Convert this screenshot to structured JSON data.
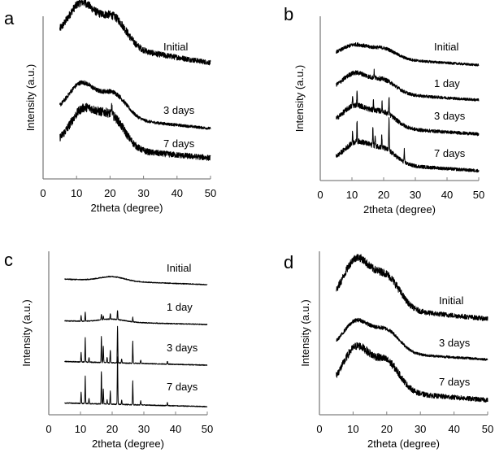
{
  "chart_data": [
    {
      "panel": "a",
      "type": "line",
      "xlabel": "2theta (degree)",
      "ylabel": "Intensity (a.u.)",
      "xlim": [
        0,
        50
      ],
      "xticks": [
        0,
        10,
        20,
        30,
        40,
        50
      ],
      "grid": false,
      "legend": "inline-labels",
      "series": [
        {
          "name": "Initial",
          "x_range": [
            5,
            50
          ],
          "broad_humps": [
            {
              "center": 11.5,
              "height": 0.85
            },
            {
              "center": 21,
              "height": 0.65
            }
          ],
          "baseline_start": 0.6,
          "baseline_end": 0.05,
          "noise": 0.18,
          "sharp_peaks": []
        },
        {
          "name": "3 days",
          "x_range": [
            5,
            50
          ],
          "broad_humps": [
            {
              "center": 11.5,
              "height": 0.7
            },
            {
              "center": 21,
              "height": 0.55
            }
          ],
          "baseline_start": 0.35,
          "baseline_end": 0.0,
          "noise": 0.1,
          "sharp_peaks": []
        },
        {
          "name": "7 days",
          "x_range": [
            5,
            50
          ],
          "broad_humps": [
            {
              "center": 12,
              "height": 0.8
            },
            {
              "center": 20.5,
              "height": 0.7
            }
          ],
          "baseline_start": 0.35,
          "baseline_end": 0.05,
          "noise": 0.2,
          "sharp_peaks": [
            {
              "x": 20.5,
              "h": 0.25
            }
          ]
        }
      ]
    },
    {
      "panel": "b",
      "type": "line",
      "xlabel": "2theta (degree)",
      "ylabel": "Intensity (a.u.)",
      "xlim": [
        0,
        50
      ],
      "xticks": [
        0,
        10,
        20,
        30,
        40,
        50
      ],
      "grid": false,
      "legend": "inline-labels",
      "series": [
        {
          "name": "Initial",
          "x_range": [
            5,
            50
          ],
          "broad_humps": [
            {
              "center": 11,
              "height": 0.35
            },
            {
              "center": 20,
              "height": 0.3
            }
          ],
          "baseline_start": 0.3,
          "baseline_end": 0.0,
          "noise": 0.12,
          "sharp_peaks": []
        },
        {
          "name": "1 day",
          "x_range": [
            5,
            50
          ],
          "broad_humps": [
            {
              "center": 11,
              "height": 0.55
            },
            {
              "center": 20,
              "height": 0.4
            }
          ],
          "baseline_start": 0.3,
          "baseline_end": 0.0,
          "noise": 0.14,
          "sharp_peaks": [
            {
              "x": 17,
              "h": 0.2
            }
          ]
        },
        {
          "name": "3 days",
          "x_range": [
            5,
            50
          ],
          "broad_humps": [
            {
              "center": 11,
              "height": 0.6
            },
            {
              "center": 20,
              "height": 0.45
            }
          ],
          "baseline_start": 0.3,
          "baseline_end": 0.0,
          "noise": 0.16,
          "sharp_peaks": [
            {
              "x": 10.2,
              "h": 0.3
            },
            {
              "x": 11.6,
              "h": 0.45
            },
            {
              "x": 16.8,
              "h": 0.3
            },
            {
              "x": 19.5,
              "h": 0.25
            },
            {
              "x": 21.7,
              "h": 0.55
            }
          ]
        },
        {
          "name": "7 days",
          "x_range": [
            5,
            50
          ],
          "broad_humps": [
            {
              "center": 11.5,
              "height": 0.6
            },
            {
              "center": 20,
              "height": 0.45
            }
          ],
          "baseline_start": 0.3,
          "baseline_end": 0.0,
          "noise": 0.16,
          "sharp_peaks": [
            {
              "x": 10.2,
              "h": 0.35
            },
            {
              "x": 11.6,
              "h": 0.65
            },
            {
              "x": 16.6,
              "h": 0.6
            },
            {
              "x": 17.3,
              "h": 0.3
            },
            {
              "x": 19.4,
              "h": 0.35
            },
            {
              "x": 21.7,
              "h": 0.95
            },
            {
              "x": 26.5,
              "h": 0.35
            }
          ]
        }
      ]
    },
    {
      "panel": "c",
      "type": "line",
      "xlabel": "2theta (degree)",
      "ylabel": "Intensity (a.u.)",
      "xlim": [
        0,
        50
      ],
      "xticks": [
        0,
        10,
        20,
        30,
        40,
        50
      ],
      "grid": false,
      "legend": "inline-labels",
      "series": [
        {
          "name": "Initial",
          "x_range": [
            5,
            50
          ],
          "broad_humps": [
            {
              "center": 20,
              "height": 0.12
            }
          ],
          "baseline_start": 0.15,
          "baseline_end": 0.0,
          "noise": 0.04,
          "sharp_peaks": []
        },
        {
          "name": "1 day",
          "x_range": [
            5,
            50
          ],
          "broad_humps": [
            {
              "center": 20,
              "height": 0.08
            }
          ],
          "baseline_start": 0.1,
          "baseline_end": 0.0,
          "noise": 0.04,
          "sharp_peaks": [
            {
              "x": 10.2,
              "h": 0.15
            },
            {
              "x": 11.5,
              "h": 0.25
            },
            {
              "x": 16.6,
              "h": 0.15
            },
            {
              "x": 17.2,
              "h": 0.1
            },
            {
              "x": 19.4,
              "h": 0.15
            },
            {
              "x": 21.7,
              "h": 0.25
            },
            {
              "x": 26.5,
              "h": 0.12
            }
          ]
        },
        {
          "name": "3 days",
          "x_range": [
            5,
            50
          ],
          "broad_humps": [],
          "baseline_start": 0.1,
          "baseline_end": 0.0,
          "noise": 0.04,
          "sharp_peaks": [
            {
              "x": 10.2,
              "h": 0.25
            },
            {
              "x": 11.5,
              "h": 0.65
            },
            {
              "x": 12.7,
              "h": 0.12
            },
            {
              "x": 16.6,
              "h": 0.7
            },
            {
              "x": 17.2,
              "h": 0.45
            },
            {
              "x": 18.4,
              "h": 0.15
            },
            {
              "x": 19.4,
              "h": 0.35
            },
            {
              "x": 21.7,
              "h": 1.0
            },
            {
              "x": 23.0,
              "h": 0.12
            },
            {
              "x": 26.5,
              "h": 0.6
            },
            {
              "x": 29.0,
              "h": 0.1
            },
            {
              "x": 37.4,
              "h": 0.08
            }
          ]
        },
        {
          "name": "7 days",
          "x_range": [
            5,
            50
          ],
          "broad_humps": [],
          "baseline_start": 0.1,
          "baseline_end": 0.0,
          "noise": 0.04,
          "sharp_peaks": [
            {
              "x": 10.2,
              "h": 0.3
            },
            {
              "x": 11.5,
              "h": 0.75
            },
            {
              "x": 12.7,
              "h": 0.15
            },
            {
              "x": 16.6,
              "h": 0.9
            },
            {
              "x": 17.2,
              "h": 0.4
            },
            {
              "x": 18.4,
              "h": 0.12
            },
            {
              "x": 19.4,
              "h": 0.35
            },
            {
              "x": 21.7,
              "h": 1.3
            },
            {
              "x": 23.0,
              "h": 0.12
            },
            {
              "x": 26.5,
              "h": 0.65
            },
            {
              "x": 29.0,
              "h": 0.12
            },
            {
              "x": 37.4,
              "h": 0.08
            }
          ]
        }
      ]
    },
    {
      "panel": "d",
      "type": "line",
      "xlabel": "2theta (degree)",
      "ylabel": "Intensity (a.u.)",
      "xlim": [
        0,
        50
      ],
      "xticks": [
        0,
        10,
        20,
        30,
        40,
        50
      ],
      "grid": false,
      "legend": "inline-labels",
      "series": [
        {
          "name": "Initial",
          "x_range": [
            5,
            50
          ],
          "broad_humps": [
            {
              "center": 11,
              "height": 0.95
            },
            {
              "center": 20,
              "height": 0.65
            }
          ],
          "baseline_start": 0.3,
          "baseline_end": 0.0,
          "noise": 0.16,
          "sharp_peaks": []
        },
        {
          "name": "3 days",
          "x_range": [
            5,
            50
          ],
          "broad_humps": [
            {
              "center": 11,
              "height": 0.6
            },
            {
              "center": 20,
              "height": 0.45
            }
          ],
          "baseline_start": 0.2,
          "baseline_end": 0.0,
          "noise": 0.08,
          "sharp_peaks": []
        },
        {
          "name": "7 days",
          "x_range": [
            5,
            50
          ],
          "broad_humps": [
            {
              "center": 11,
              "height": 0.85
            },
            {
              "center": 20,
              "height": 0.6
            }
          ],
          "baseline_start": 0.25,
          "baseline_end": 0.0,
          "noise": 0.16,
          "sharp_peaks": []
        }
      ]
    }
  ]
}
